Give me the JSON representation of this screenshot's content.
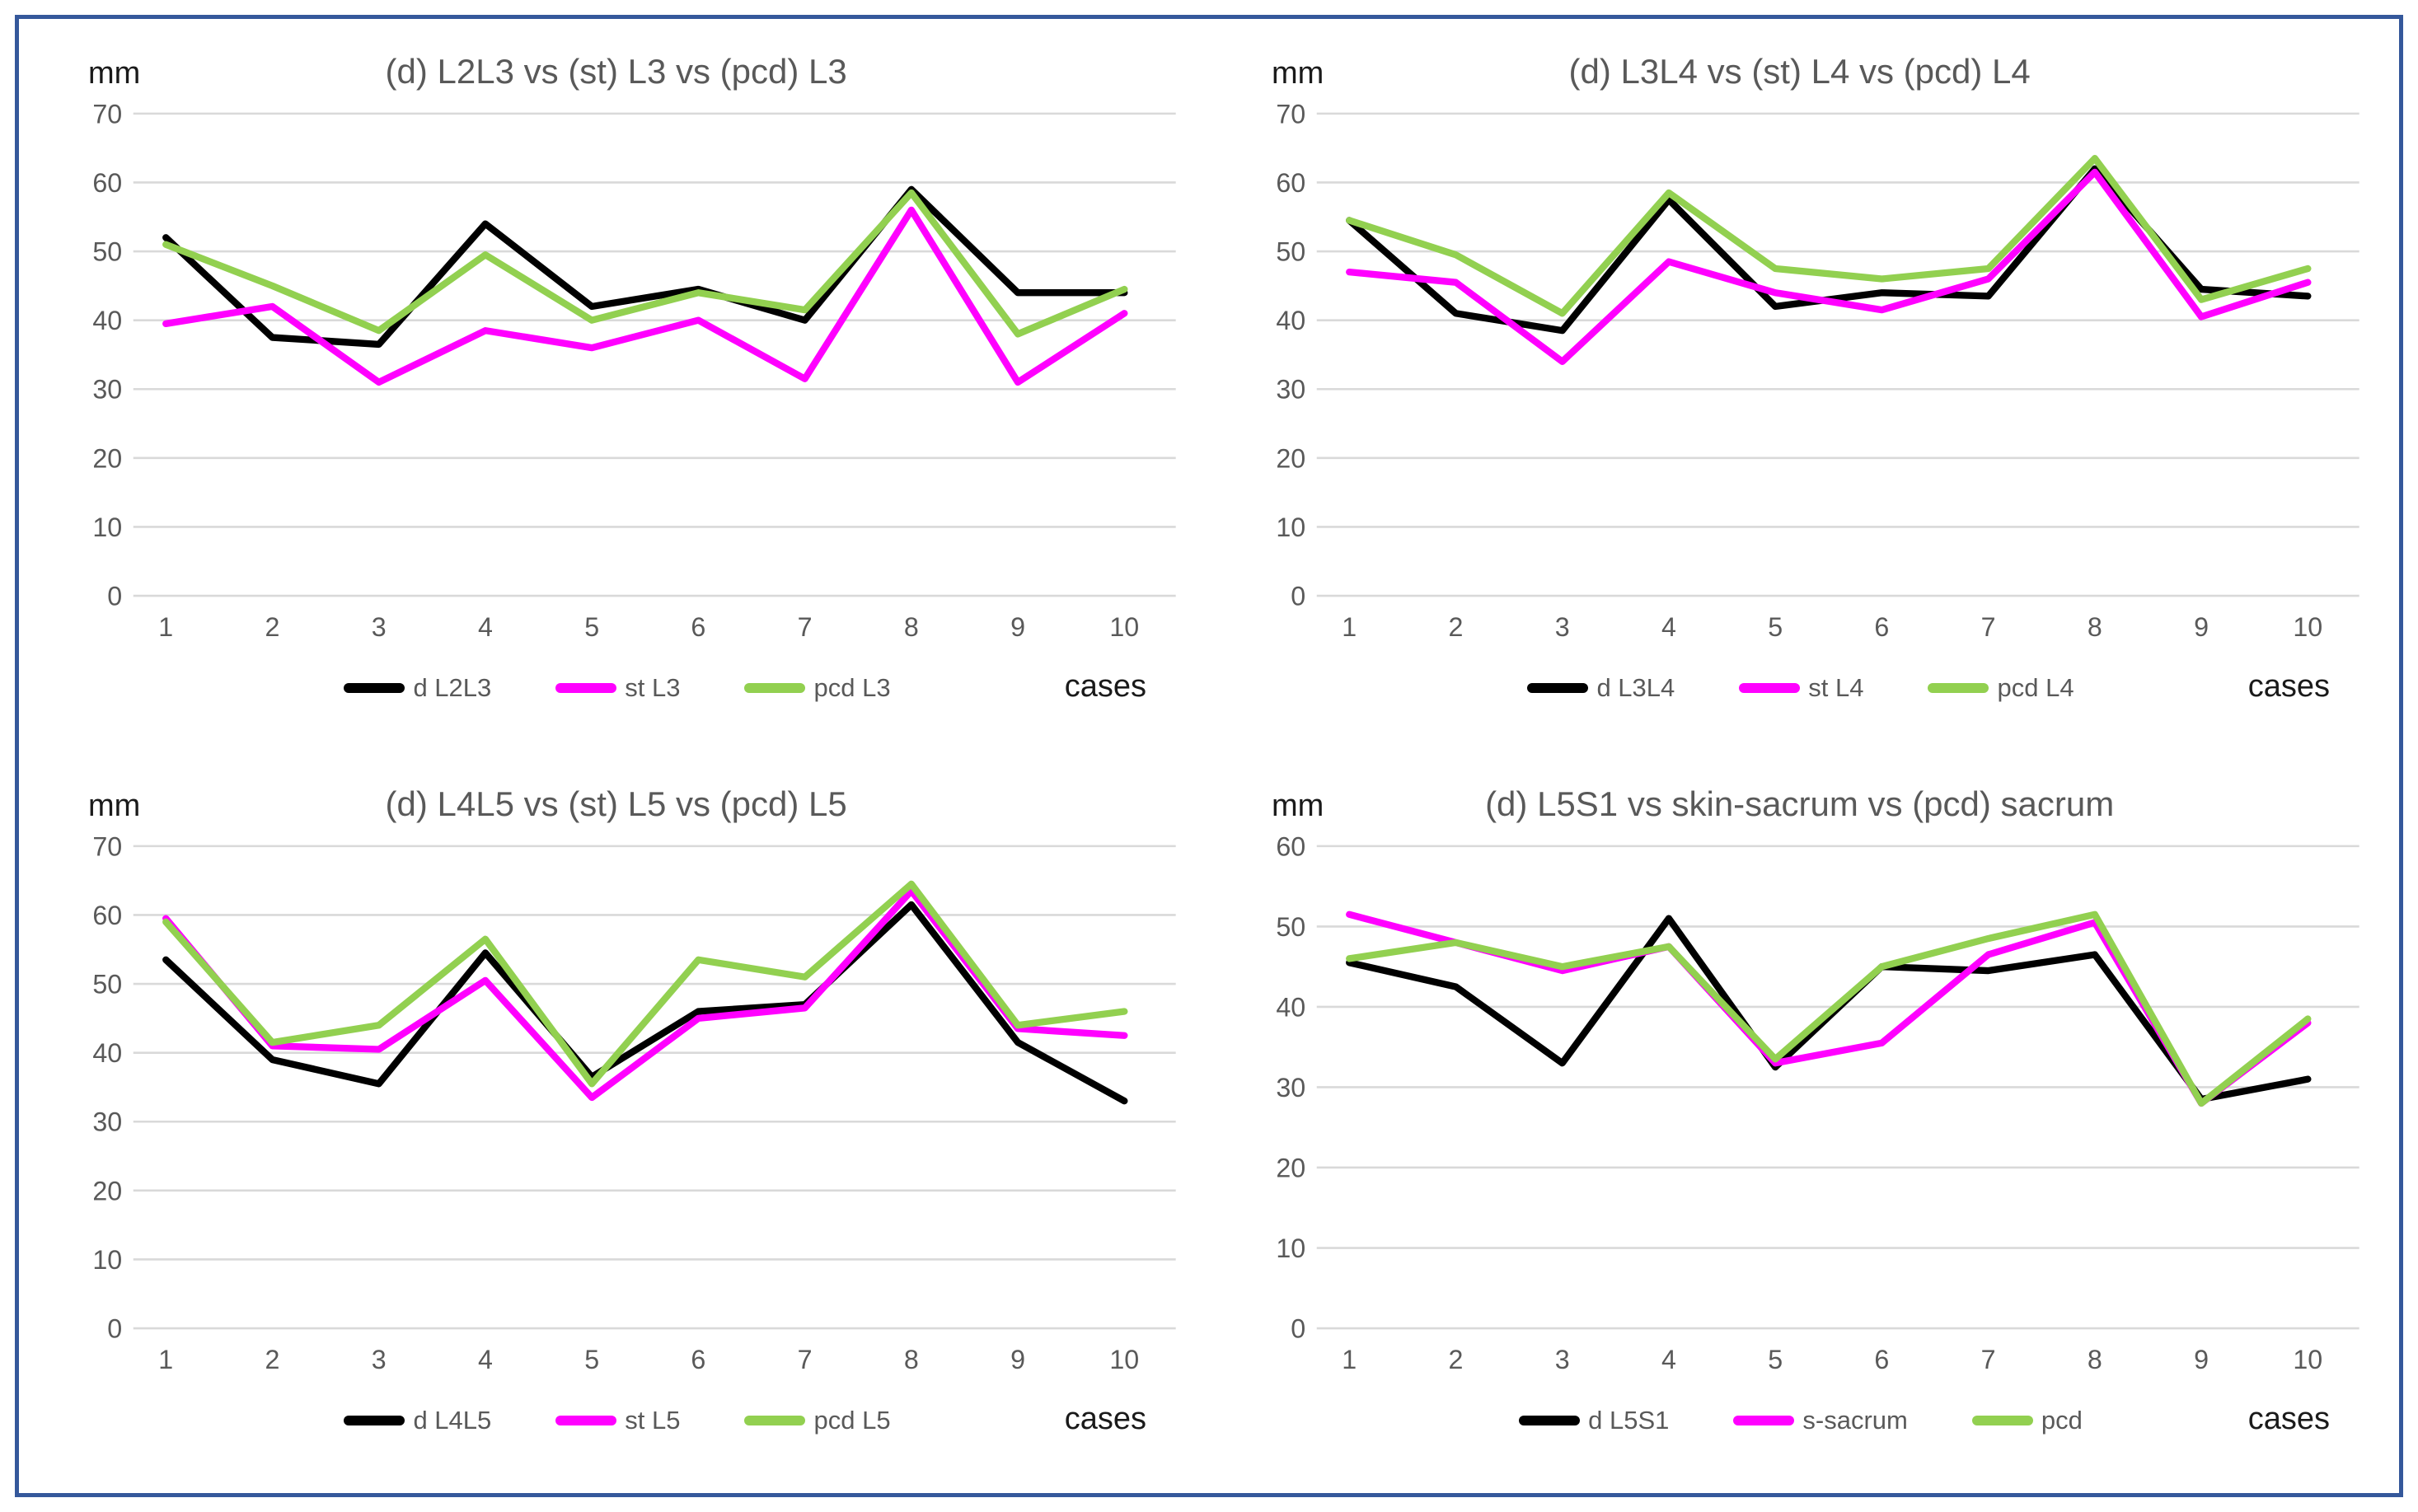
{
  "figure": {
    "border_color": "#35589B",
    "background_color": "#FFFFFF",
    "gridline_color": "#D9D9D9",
    "text_color": "#595959",
    "series_colors": {
      "d": "#000000",
      "st": "#FF00FF",
      "pcd": "#92D050"
    }
  },
  "chart_data": [
    {
      "type": "line",
      "title": "(d) L2L3 vs (st) L3 vs (pcd) L3",
      "ylabel": "mm",
      "xlabel": "cases",
      "categories": [
        "1",
        "2",
        "3",
        "4",
        "5",
        "6",
        "7",
        "8",
        "9",
        "10"
      ],
      "ylim": [
        0,
        70
      ],
      "yticks": [
        0,
        10,
        20,
        30,
        40,
        50,
        60,
        70
      ],
      "grid": "horizontal",
      "legend_position": "bottom",
      "series": [
        {
          "name": "d L2L3",
          "color": "#000000",
          "values": [
            52,
            37.5,
            36.5,
            54,
            42,
            44.5,
            40,
            59,
            44,
            44
          ]
        },
        {
          "name": "st L3",
          "color": "#FF00FF",
          "values": [
            39.5,
            42,
            31,
            38.5,
            36,
            40,
            31.5,
            56,
            31,
            41
          ]
        },
        {
          "name": "pcd L3",
          "color": "#92D050",
          "values": [
            51,
            45,
            38.5,
            49.5,
            40,
            44,
            41.5,
            58.5,
            38,
            44.5
          ]
        }
      ]
    },
    {
      "type": "line",
      "title": "(d) L3L4 vs (st) L4 vs (pcd) L4",
      "ylabel": "mm",
      "xlabel": "cases",
      "categories": [
        "1",
        "2",
        "3",
        "4",
        "5",
        "6",
        "7",
        "8",
        "9",
        "10"
      ],
      "ylim": [
        0,
        70
      ],
      "yticks": [
        0,
        10,
        20,
        30,
        40,
        50,
        60,
        70
      ],
      "grid": "horizontal",
      "legend_position": "bottom",
      "series": [
        {
          "name": "d L3L4",
          "color": "#000000",
          "values": [
            54.5,
            41,
            38.5,
            57.5,
            42,
            44,
            43.5,
            62,
            44.5,
            43.5
          ]
        },
        {
          "name": "st L4",
          "color": "#FF00FF",
          "values": [
            47,
            45.5,
            34,
            48.5,
            44,
            41.5,
            46,
            61.5,
            40.5,
            45.5
          ]
        },
        {
          "name": "pcd L4",
          "color": "#92D050",
          "values": [
            54.5,
            49.5,
            41,
            58.5,
            47.5,
            46,
            47.5,
            63.5,
            43,
            47.5
          ]
        }
      ]
    },
    {
      "type": "line",
      "title": "(d) L4L5 vs (st) L5 vs (pcd) L5",
      "ylabel": "mm",
      "xlabel": "cases",
      "categories": [
        "1",
        "2",
        "3",
        "4",
        "5",
        "6",
        "7",
        "8",
        "9",
        "10"
      ],
      "ylim": [
        0,
        70
      ],
      "yticks": [
        0,
        10,
        20,
        30,
        40,
        50,
        60,
        70
      ],
      "grid": "horizontal",
      "legend_position": "bottom",
      "series": [
        {
          "name": "d L4L5",
          "color": "#000000",
          "values": [
            53.5,
            39,
            35.5,
            54.5,
            36.5,
            46,
            47,
            61.5,
            41.5,
            33
          ]
        },
        {
          "name": "st L5",
          "color": "#FF00FF",
          "values": [
            59.5,
            41,
            40.5,
            50.5,
            33.5,
            45,
            46.5,
            63.5,
            43.5,
            42.5
          ]
        },
        {
          "name": "pcd L5",
          "color": "#92D050",
          "values": [
            59,
            41.5,
            44,
            56.5,
            35.5,
            53.5,
            51,
            64.5,
            44,
            46
          ]
        }
      ]
    },
    {
      "type": "line",
      "title": "(d) L5S1 vs skin-sacrum vs (pcd) sacrum",
      "ylabel": "mm",
      "xlabel": "cases",
      "categories": [
        "1",
        "2",
        "3",
        "4",
        "5",
        "6",
        "7",
        "8",
        "9",
        "10"
      ],
      "ylim": [
        0,
        60
      ],
      "yticks": [
        0,
        10,
        20,
        30,
        40,
        50,
        60
      ],
      "grid": "horizontal",
      "legend_position": "bottom",
      "series": [
        {
          "name": "d L5S1",
          "color": "#000000",
          "values": [
            45.5,
            42.5,
            33,
            51,
            32.5,
            45,
            44.5,
            46.5,
            28.5,
            31
          ]
        },
        {
          "name": "s-sacrum",
          "color": "#FF00FF",
          "values": [
            51.5,
            48,
            44.5,
            47.5,
            33,
            35.5,
            46.5,
            50.5,
            28,
            38
          ]
        },
        {
          "name": "pcd",
          "color": "#92D050",
          "values": [
            46,
            48,
            45,
            47.5,
            33.5,
            45,
            48.5,
            51.5,
            28,
            38.5
          ]
        }
      ]
    }
  ]
}
